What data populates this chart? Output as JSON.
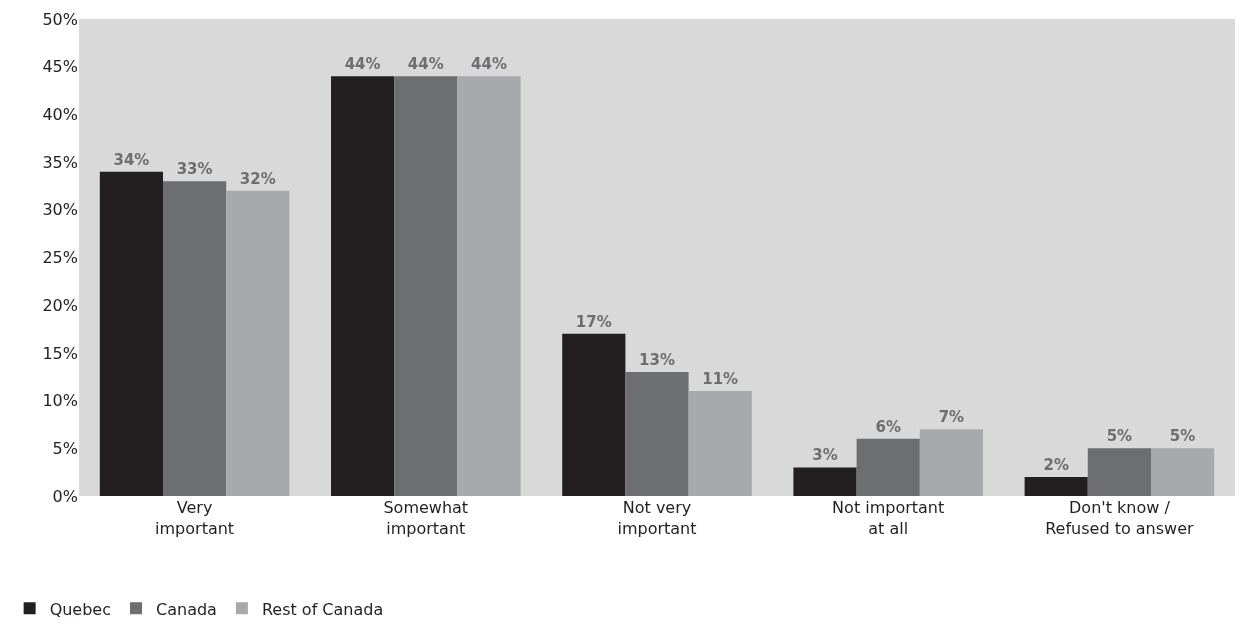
{
  "chart_data": {
    "type": "bar",
    "categories": [
      "Very\nimportant",
      "Somewhat\nimportant",
      "Not very\nimportant",
      "Not important\nat all",
      "Don't know /\nRefused to answer"
    ],
    "series": [
      {
        "name": "Quebec",
        "color": "#231f20",
        "values": [
          34,
          44,
          17,
          3,
          2
        ],
        "value_labels": [
          "34%",
          "44%",
          "17%",
          "3%",
          "2%"
        ]
      },
      {
        "name": "Canada",
        "color": "#6d6e70",
        "values": [
          33,
          44,
          13,
          6,
          5
        ],
        "value_labels": [
          "33%",
          "44%",
          "13%",
          "6%",
          "5%"
        ]
      },
      {
        "name": "Rest of Canada",
        "color": "#a7a9ac",
        "values": [
          32,
          44,
          11,
          7,
          5
        ],
        "value_labels": [
          "32%",
          "44%",
          "11%",
          "7%",
          "5%"
        ]
      }
    ],
    "ylim": [
      0,
      50
    ],
    "yticks": [
      {
        "value": 0,
        "label": "0%"
      },
      {
        "value": 5,
        "label": "5%"
      },
      {
        "value": 10,
        "label": "10%"
      },
      {
        "value": 15,
        "label": "15%"
      },
      {
        "value": 20,
        "label": "20%"
      },
      {
        "value": 25,
        "label": "25%"
      },
      {
        "value": 30,
        "label": "30%"
      },
      {
        "value": 35,
        "label": "35%"
      },
      {
        "value": 40,
        "label": "40%"
      },
      {
        "value": 45,
        "label": "45%"
      },
      {
        "value": 50,
        "label": "50%"
      }
    ],
    "grid": false,
    "legend": "bottom left"
  }
}
